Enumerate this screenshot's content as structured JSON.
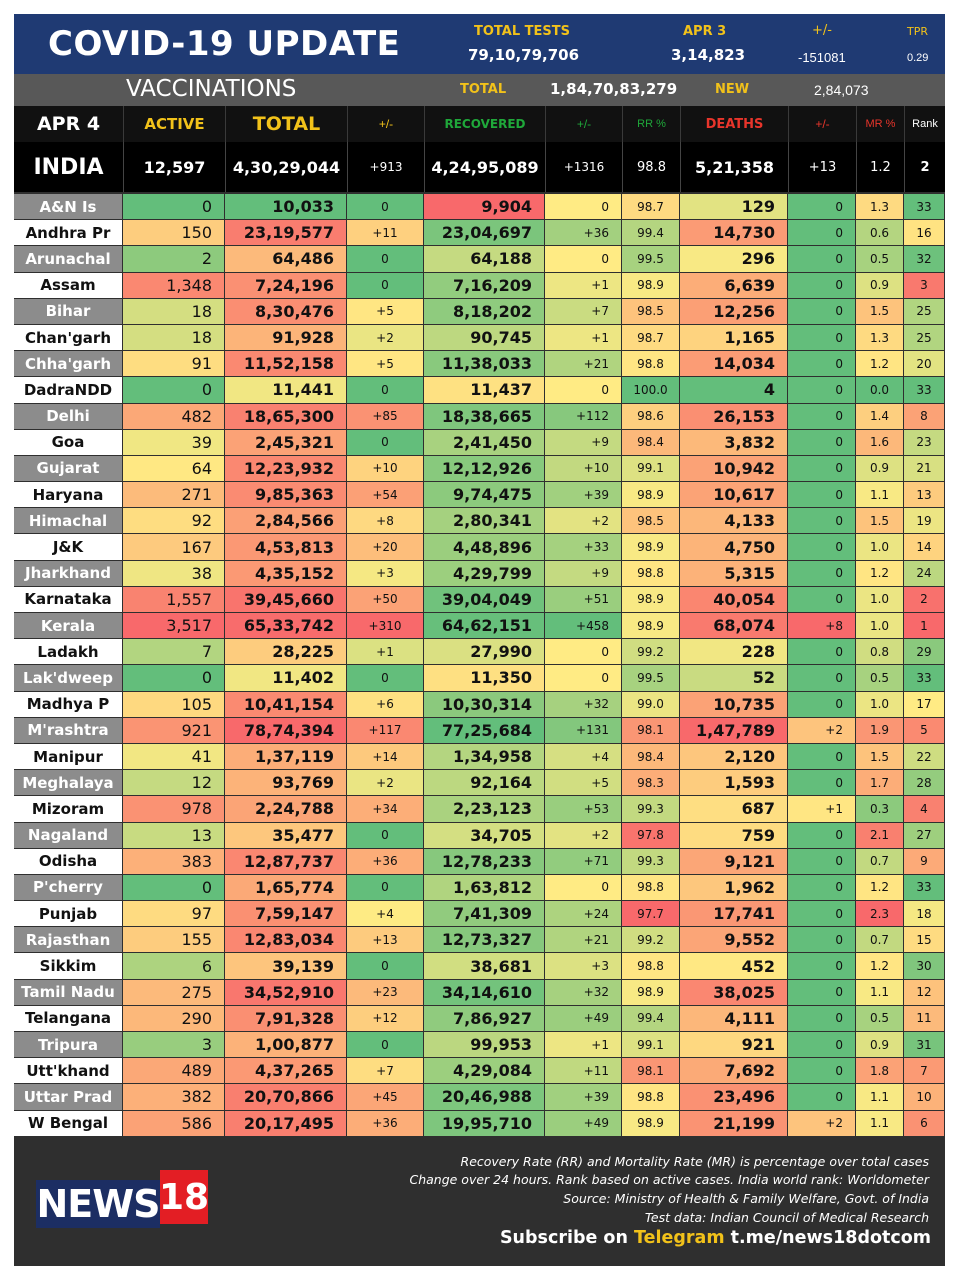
{
  "header": {
    "title": "COVID-19 UPDATE",
    "total_tests_label": "TOTAL TESTS",
    "total_tests_value": "79,10,79,706",
    "date_label": "APR 3",
    "date_value": "3,14,823",
    "change_label": "+/-",
    "change_value": "-151081",
    "tpr_label": "TPR",
    "tpr_value": "0.29"
  },
  "vaccinations": {
    "label": "VACCINATIONS",
    "total_label": "TOTAL",
    "total_value": "1,84,70,83,279",
    "new_label": "NEW",
    "new_value": "2,84,073"
  },
  "columns": {
    "date": "APR 4",
    "active": "ACTIVE",
    "total": "TOTAL",
    "total_change": "+/-",
    "recovered": "RECOVERED",
    "recovered_change": "+/-",
    "rr": "RR %",
    "deaths": "DEATHS",
    "deaths_change": "+/-",
    "mr": "MR %",
    "rank": "Rank"
  },
  "india": {
    "name": "INDIA",
    "active": "12,597",
    "total": "4,30,29,044",
    "total_change": "+913",
    "recovered": "4,24,95,089",
    "recovered_change": "+1316",
    "rr": "98.8",
    "deaths": "5,21,358",
    "deaths_change": "+13",
    "mr": "1.2",
    "rank": "2"
  },
  "rows": [
    {
      "state": "A&N Is",
      "active": "0",
      "total": "10,033",
      "total_change": "0",
      "recovered": "9,904",
      "recovered_change": "0",
      "rr": "98.7",
      "deaths": "129",
      "deaths_change": "0",
      "mr": "1.3",
      "rank": "33"
    },
    {
      "state": "Andhra Pr",
      "active": "150",
      "total": "23,19,577",
      "total_change": "+11",
      "recovered": "23,04,697",
      "recovered_change": "+36",
      "rr": "99.4",
      "deaths": "14,730",
      "deaths_change": "0",
      "mr": "0.6",
      "rank": "16"
    },
    {
      "state": "Arunachal",
      "active": "2",
      "total": "64,486",
      "total_change": "0",
      "recovered": "64,188",
      "recovered_change": "0",
      "rr": "99.5",
      "deaths": "296",
      "deaths_change": "0",
      "mr": "0.5",
      "rank": "32"
    },
    {
      "state": "Assam",
      "active": "1,348",
      "total": "7,24,196",
      "total_change": "0",
      "recovered": "7,16,209",
      "recovered_change": "+1",
      "rr": "98.9",
      "deaths": "6,639",
      "deaths_change": "0",
      "mr": "0.9",
      "rank": "3"
    },
    {
      "state": "Bihar",
      "active": "18",
      "total": "8,30,476",
      "total_change": "+5",
      "recovered": "8,18,202",
      "recovered_change": "+7",
      "rr": "98.5",
      "deaths": "12,256",
      "deaths_change": "0",
      "mr": "1.5",
      "rank": "25"
    },
    {
      "state": "Chan'garh",
      "active": "18",
      "total": "91,928",
      "total_change": "+2",
      "recovered": "90,745",
      "recovered_change": "+1",
      "rr": "98.7",
      "deaths": "1,165",
      "deaths_change": "0",
      "mr": "1.3",
      "rank": "25"
    },
    {
      "state": "Chha'garh",
      "active": "91",
      "total": "11,52,158",
      "total_change": "+5",
      "recovered": "11,38,033",
      "recovered_change": "+21",
      "rr": "98.8",
      "deaths": "14,034",
      "deaths_change": "0",
      "mr": "1.2",
      "rank": "20"
    },
    {
      "state": "DadraNDD",
      "active": "0",
      "total": "11,441",
      "total_change": "0",
      "recovered": "11,437",
      "recovered_change": "0",
      "rr": "100.0",
      "deaths": "4",
      "deaths_change": "0",
      "mr": "0.0",
      "rank": "33"
    },
    {
      "state": "Delhi",
      "active": "482",
      "total": "18,65,300",
      "total_change": "+85",
      "recovered": "18,38,665",
      "recovered_change": "+112",
      "rr": "98.6",
      "deaths": "26,153",
      "deaths_change": "0",
      "mr": "1.4",
      "rank": "8"
    },
    {
      "state": "Goa",
      "active": "39",
      "total": "2,45,321",
      "total_change": "0",
      "recovered": "2,41,450",
      "recovered_change": "+9",
      "rr": "98.4",
      "deaths": "3,832",
      "deaths_change": "0",
      "mr": "1.6",
      "rank": "23"
    },
    {
      "state": "Gujarat",
      "active": "64",
      "total": "12,23,932",
      "total_change": "+10",
      "recovered": "12,12,926",
      "recovered_change": "+10",
      "rr": "99.1",
      "deaths": "10,942",
      "deaths_change": "0",
      "mr": "0.9",
      "rank": "21"
    },
    {
      "state": "Haryana",
      "active": "271",
      "total": "9,85,363",
      "total_change": "+54",
      "recovered": "9,74,475",
      "recovered_change": "+39",
      "rr": "98.9",
      "deaths": "10,617",
      "deaths_change": "0",
      "mr": "1.1",
      "rank": "13"
    },
    {
      "state": "Himachal",
      "active": "92",
      "total": "2,84,566",
      "total_change": "+8",
      "recovered": "2,80,341",
      "recovered_change": "+2",
      "rr": "98.5",
      "deaths": "4,133",
      "deaths_change": "0",
      "mr": "1.5",
      "rank": "19"
    },
    {
      "state": "J&K",
      "active": "167",
      "total": "4,53,813",
      "total_change": "+20",
      "recovered": "4,48,896",
      "recovered_change": "+33",
      "rr": "98.9",
      "deaths": "4,750",
      "deaths_change": "0",
      "mr": "1.0",
      "rank": "14"
    },
    {
      "state": "Jharkhand",
      "active": "38",
      "total": "4,35,152",
      "total_change": "+3",
      "recovered": "4,29,799",
      "recovered_change": "+9",
      "rr": "98.8",
      "deaths": "5,315",
      "deaths_change": "0",
      "mr": "1.2",
      "rank": "24"
    },
    {
      "state": "Karnataka",
      "active": "1,557",
      "total": "39,45,660",
      "total_change": "+50",
      "recovered": "39,04,049",
      "recovered_change": "+51",
      "rr": "98.9",
      "deaths": "40,054",
      "deaths_change": "0",
      "mr": "1.0",
      "rank": "2"
    },
    {
      "state": "Kerala",
      "active": "3,517",
      "total": "65,33,742",
      "total_change": "+310",
      "recovered": "64,62,151",
      "recovered_change": "+458",
      "rr": "98.9",
      "deaths": "68,074",
      "deaths_change": "+8",
      "mr": "1.0",
      "rank": "1"
    },
    {
      "state": "Ladakh",
      "active": "7",
      "total": "28,225",
      "total_change": "+1",
      "recovered": "27,990",
      "recovered_change": "0",
      "rr": "99.2",
      "deaths": "228",
      "deaths_change": "0",
      "mr": "0.8",
      "rank": "29"
    },
    {
      "state": "Lak'dweep",
      "active": "0",
      "total": "11,402",
      "total_change": "0",
      "recovered": "11,350",
      "recovered_change": "0",
      "rr": "99.5",
      "deaths": "52",
      "deaths_change": "0",
      "mr": "0.5",
      "rank": "33"
    },
    {
      "state": "Madhya P",
      "active": "105",
      "total": "10,41,154",
      "total_change": "+6",
      "recovered": "10,30,314",
      "recovered_change": "+32",
      "rr": "99.0",
      "deaths": "10,735",
      "deaths_change": "0",
      "mr": "1.0",
      "rank": "17"
    },
    {
      "state": "M'rashtra",
      "active": "921",
      "total": "78,74,394",
      "total_change": "+117",
      "recovered": "77,25,684",
      "recovered_change": "+131",
      "rr": "98.1",
      "deaths": "1,47,789",
      "deaths_change": "+2",
      "mr": "1.9",
      "rank": "5"
    },
    {
      "state": "Manipur",
      "active": "41",
      "total": "1,37,119",
      "total_change": "+14",
      "recovered": "1,34,958",
      "recovered_change": "+4",
      "rr": "98.4",
      "deaths": "2,120",
      "deaths_change": "0",
      "mr": "1.5",
      "rank": "22"
    },
    {
      "state": "Meghalaya",
      "active": "12",
      "total": "93,769",
      "total_change": "+2",
      "recovered": "92,164",
      "recovered_change": "+5",
      "rr": "98.3",
      "deaths": "1,593",
      "deaths_change": "0",
      "mr": "1.7",
      "rank": "28"
    },
    {
      "state": "Mizoram",
      "active": "978",
      "total": "2,24,788",
      "total_change": "+34",
      "recovered": "2,23,123",
      "recovered_change": "+53",
      "rr": "99.3",
      "deaths": "687",
      "deaths_change": "+1",
      "mr": "0.3",
      "rank": "4"
    },
    {
      "state": "Nagaland",
      "active": "13",
      "total": "35,477",
      "total_change": "0",
      "recovered": "34,705",
      "recovered_change": "+2",
      "rr": "97.8",
      "deaths": "759",
      "deaths_change": "0",
      "mr": "2.1",
      "rank": "27"
    },
    {
      "state": "Odisha",
      "active": "383",
      "total": "12,87,737",
      "total_change": "+36",
      "recovered": "12,78,233",
      "recovered_change": "+71",
      "rr": "99.3",
      "deaths": "9,121",
      "deaths_change": "0",
      "mr": "0.7",
      "rank": "9"
    },
    {
      "state": "P'cherry",
      "active": "0",
      "total": "1,65,774",
      "total_change": "0",
      "recovered": "1,63,812",
      "recovered_change": "0",
      "rr": "98.8",
      "deaths": "1,962",
      "deaths_change": "0",
      "mr": "1.2",
      "rank": "33"
    },
    {
      "state": "Punjab",
      "active": "97",
      "total": "7,59,147",
      "total_change": "+4",
      "recovered": "7,41,309",
      "recovered_change": "+24",
      "rr": "97.7",
      "deaths": "17,741",
      "deaths_change": "0",
      "mr": "2.3",
      "rank": "18"
    },
    {
      "state": "Rajasthan",
      "active": "155",
      "total": "12,83,034",
      "total_change": "+13",
      "recovered": "12,73,327",
      "recovered_change": "+21",
      "rr": "99.2",
      "deaths": "9,552",
      "deaths_change": "0",
      "mr": "0.7",
      "rank": "15"
    },
    {
      "state": "Sikkim",
      "active": "6",
      "total": "39,139",
      "total_change": "0",
      "recovered": "38,681",
      "recovered_change": "+3",
      "rr": "98.8",
      "deaths": "452",
      "deaths_change": "0",
      "mr": "1.2",
      "rank": "30"
    },
    {
      "state": "Tamil Nadu",
      "active": "275",
      "total": "34,52,910",
      "total_change": "+23",
      "recovered": "34,14,610",
      "recovered_change": "+32",
      "rr": "98.9",
      "deaths": "38,025",
      "deaths_change": "0",
      "mr": "1.1",
      "rank": "12"
    },
    {
      "state": "Telangana",
      "active": "290",
      "total": "7,91,328",
      "total_change": "+12",
      "recovered": "7,86,927",
      "recovered_change": "+49",
      "rr": "99.4",
      "deaths": "4,111",
      "deaths_change": "0",
      "mr": "0.5",
      "rank": "11"
    },
    {
      "state": "Tripura",
      "active": "3",
      "total": "1,00,877",
      "total_change": "0",
      "recovered": "99,953",
      "recovered_change": "+1",
      "rr": "99.1",
      "deaths": "921",
      "deaths_change": "0",
      "mr": "0.9",
      "rank": "31"
    },
    {
      "state": "Utt'khand",
      "active": "489",
      "total": "4,37,265",
      "total_change": "+7",
      "recovered": "4,29,084",
      "recovered_change": "+11",
      "rr": "98.1",
      "deaths": "7,692",
      "deaths_change": "0",
      "mr": "1.8",
      "rank": "7"
    },
    {
      "state": "Uttar Prad",
      "active": "382",
      "total": "20,70,866",
      "total_change": "+45",
      "recovered": "20,46,988",
      "recovered_change": "+39",
      "rr": "98.8",
      "deaths": "23,496",
      "deaths_change": "0",
      "mr": "1.1",
      "rank": "10"
    },
    {
      "state": "W Bengal",
      "active": "586",
      "total": "20,17,495",
      "total_change": "+36",
      "recovered": "19,95,710",
      "recovered_change": "+49",
      "rr": "98.9",
      "deaths": "21,199",
      "deaths_change": "+2",
      "mr": "1.1",
      "rank": "6"
    }
  ],
  "footer": {
    "logo_text": "NEWS",
    "logo_number": "18",
    "notes": [
      "Recovery Rate (RR) and Mortality Rate (MR) is percentage over total cases",
      "Change over 24 hours. Rank based on active cases. India world rank: Worldometer",
      "Source: Ministry of Health & Family Welfare, Govt. of India",
      "Test data: Indian Council of Medical Research"
    ],
    "subscribe_prefix": "Subscribe on",
    "subscribe_app": "Telegram",
    "subscribe_link": "t.me/news18dotcom"
  },
  "colors": {
    "header_blue": "#1f3a73",
    "label_yellow": "#f2c21a",
    "recovered_green": "#1fa83a",
    "deaths_red": "#e8352b",
    "scale_green": "#63be7b",
    "scale_yellow": "#ffeb84",
    "scale_red": "#f8696b"
  }
}
